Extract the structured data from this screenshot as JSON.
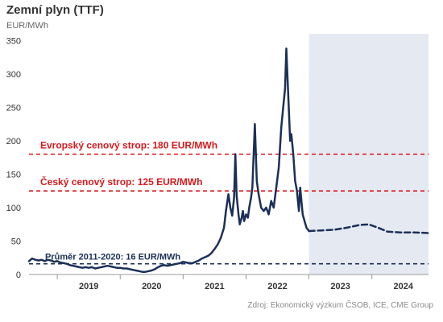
{
  "chart_data": {
    "type": "line",
    "title": "Zemní plyn (TTF)",
    "unit_label": "EUR/MWh",
    "source": "Zdroj: Ekonomický výzkum ČSOB, ICE, CME Group",
    "ylim": [
      0,
      360
    ],
    "y_ticks": [
      0,
      50,
      100,
      150,
      200,
      250,
      300,
      350
    ],
    "x_range": [
      2018.55,
      2024.9
    ],
    "x_categories": [
      "2019",
      "2020",
      "2021",
      "2022",
      "2023",
      "2024"
    ],
    "forecast_start": 2023.0,
    "series": [
      {
        "style": "solid",
        "points": [
          [
            2018.55,
            20
          ],
          [
            2018.6,
            24
          ],
          [
            2018.65,
            22
          ],
          [
            2018.7,
            21
          ],
          [
            2018.75,
            22
          ],
          [
            2018.8,
            20
          ],
          [
            2018.85,
            22
          ],
          [
            2018.9,
            21
          ],
          [
            2018.95,
            19
          ],
          [
            2019.0,
            20
          ],
          [
            2019.05,
            18
          ],
          [
            2019.1,
            17
          ],
          [
            2019.15,
            16
          ],
          [
            2019.2,
            14
          ],
          [
            2019.25,
            13
          ],
          [
            2019.3,
            12
          ],
          [
            2019.35,
            11
          ],
          [
            2019.4,
            10
          ],
          [
            2019.45,
            11
          ],
          [
            2019.5,
            10
          ],
          [
            2019.55,
            11
          ],
          [
            2019.6,
            9
          ],
          [
            2019.65,
            10
          ],
          [
            2019.7,
            11
          ],
          [
            2019.75,
            12
          ],
          [
            2019.8,
            13
          ],
          [
            2019.85,
            12
          ],
          [
            2019.9,
            11
          ],
          [
            2019.95,
            10
          ],
          [
            2020.0,
            10
          ],
          [
            2020.05,
            9
          ],
          [
            2020.1,
            9
          ],
          [
            2020.15,
            8
          ],
          [
            2020.2,
            7
          ],
          [
            2020.25,
            6
          ],
          [
            2020.3,
            5
          ],
          [
            2020.35,
            4
          ],
          [
            2020.4,
            4
          ],
          [
            2020.45,
            5
          ],
          [
            2020.5,
            6
          ],
          [
            2020.55,
            8
          ],
          [
            2020.6,
            11
          ],
          [
            2020.65,
            13
          ],
          [
            2020.7,
            14
          ],
          [
            2020.75,
            13
          ],
          [
            2020.8,
            14
          ],
          [
            2020.85,
            15
          ],
          [
            2020.9,
            16
          ],
          [
            2020.95,
            17
          ],
          [
            2021.0,
            19
          ],
          [
            2021.05,
            18
          ],
          [
            2021.1,
            17
          ],
          [
            2021.15,
            17
          ],
          [
            2021.2,
            19
          ],
          [
            2021.25,
            21
          ],
          [
            2021.3,
            24
          ],
          [
            2021.35,
            26
          ],
          [
            2021.4,
            28
          ],
          [
            2021.45,
            32
          ],
          [
            2021.5,
            38
          ],
          [
            2021.55,
            45
          ],
          [
            2021.6,
            55
          ],
          [
            2021.65,
            70
          ],
          [
            2021.68,
            95
          ],
          [
            2021.72,
            120
          ],
          [
            2021.75,
            100
          ],
          [
            2021.78,
            88
          ],
          [
            2021.81,
            115
          ],
          [
            2021.83,
            180
          ],
          [
            2021.85,
            118
          ],
          [
            2021.88,
            90
          ],
          [
            2021.9,
            75
          ],
          [
            2021.93,
            85
          ],
          [
            2021.95,
            95
          ],
          [
            2021.97,
            80
          ],
          [
            2022.0,
            90
          ],
          [
            2022.03,
            85
          ],
          [
            2022.05,
            100
          ],
          [
            2022.08,
            115
          ],
          [
            2022.1,
            130
          ],
          [
            2022.14,
            225
          ],
          [
            2022.17,
            140
          ],
          [
            2022.2,
            120
          ],
          [
            2022.24,
            100
          ],
          [
            2022.28,
            95
          ],
          [
            2022.32,
            100
          ],
          [
            2022.36,
            90
          ],
          [
            2022.4,
            110
          ],
          [
            2022.44,
            100
          ],
          [
            2022.48,
            130
          ],
          [
            2022.52,
            160
          ],
          [
            2022.56,
            220
          ],
          [
            2022.59,
            250
          ],
          [
            2022.62,
            278
          ],
          [
            2022.64,
            338
          ],
          [
            2022.67,
            270
          ],
          [
            2022.7,
            200
          ],
          [
            2022.72,
            210
          ],
          [
            2022.75,
            180
          ],
          [
            2022.78,
            140
          ],
          [
            2022.81,
            125
          ],
          [
            2022.84,
            95
          ],
          [
            2022.86,
            130
          ],
          [
            2022.88,
            110
          ],
          [
            2022.9,
            90
          ],
          [
            2022.93,
            80
          ],
          [
            2022.96,
            70
          ],
          [
            2023.0,
            65
          ]
        ]
      },
      {
        "style": "dashed",
        "points": [
          [
            2023.0,
            65
          ],
          [
            2023.2,
            66
          ],
          [
            2023.4,
            67
          ],
          [
            2023.6,
            70
          ],
          [
            2023.8,
            74
          ],
          [
            2023.95,
            75
          ],
          [
            2024.1,
            70
          ],
          [
            2024.25,
            64
          ],
          [
            2024.45,
            63
          ],
          [
            2024.65,
            63
          ],
          [
            2024.9,
            62
          ]
        ]
      }
    ],
    "reference_lines": [
      {
        "y": 180,
        "color": "#d7191c",
        "label": "Evropský cenový strop: 180 EUR/MWh"
      },
      {
        "y": 125,
        "color": "#d7191c",
        "label": "Český cenový strop: 125 EUR/MWh"
      },
      {
        "y": 16,
        "color": "#1b2f57",
        "label": "Průměr 2011-2020: 16 EUR/MWh"
      }
    ],
    "line_color": "#1b2f57",
    "shade_color": "#e5e9f1"
  }
}
